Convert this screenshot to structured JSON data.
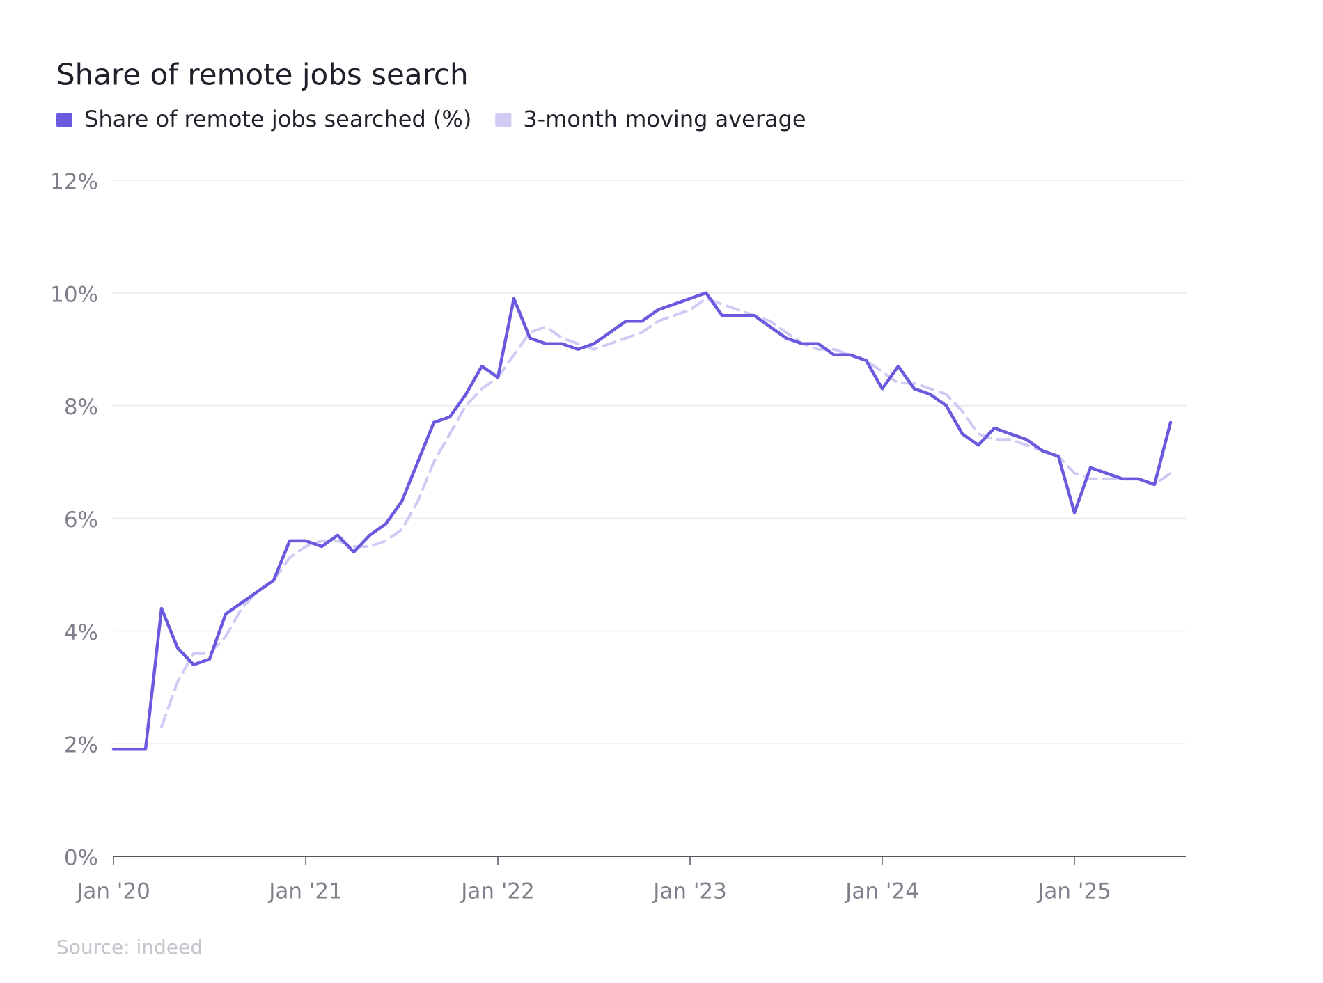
{
  "chart_data": {
    "type": "line",
    "title": "Share of remote jobs search",
    "source": "Source: indeed",
    "x": [
      "2020-01",
      "2020-02",
      "2020-03",
      "2020-04",
      "2020-05",
      "2020-06",
      "2020-07",
      "2020-08",
      "2020-09",
      "2020-10",
      "2020-11",
      "2020-12",
      "2021-01",
      "2021-02",
      "2021-03",
      "2021-04",
      "2021-05",
      "2021-06",
      "2021-07",
      "2021-08",
      "2021-09",
      "2021-10",
      "2021-11",
      "2021-12",
      "2022-01",
      "2022-02",
      "2022-03",
      "2022-04",
      "2022-05",
      "2022-06",
      "2022-07",
      "2022-08",
      "2022-09",
      "2022-10",
      "2022-11",
      "2022-12",
      "2023-01",
      "2023-02",
      "2023-03",
      "2023-04",
      "2023-05",
      "2023-06",
      "2023-07",
      "2023-08",
      "2023-09",
      "2023-10",
      "2023-11",
      "2023-12",
      "2024-01",
      "2024-02",
      "2024-03",
      "2024-04",
      "2024-05",
      "2024-06",
      "2024-07",
      "2024-08",
      "2024-09",
      "2024-10",
      "2024-11",
      "2024-12",
      "2025-01",
      "2025-02",
      "2025-03",
      "2025-04",
      "2025-05",
      "2025-06",
      "2025-07"
    ],
    "series": [
      {
        "name": "Share of remote jobs searched (%)",
        "color": "#6a5add",
        "values": [
          1.9,
          1.9,
          1.9,
          4.4,
          3.7,
          3.4,
          3.5,
          4.3,
          4.5,
          4.7,
          4.9,
          5.6,
          5.6,
          5.5,
          5.7,
          5.4,
          5.7,
          5.9,
          6.3,
          7.0,
          7.7,
          7.8,
          8.2,
          8.7,
          8.5,
          9.9,
          9.2,
          9.1,
          9.1,
          9.0,
          9.1,
          9.3,
          9.5,
          9.5,
          9.7,
          9.8,
          9.9,
          10.0,
          9.6,
          9.6,
          9.6,
          9.4,
          9.2,
          9.1,
          9.1,
          8.9,
          8.9,
          8.8,
          8.3,
          8.7,
          8.3,
          8.2,
          8.0,
          7.5,
          7.3,
          7.6,
          7.5,
          7.4,
          7.2,
          7.1,
          6.1,
          6.9,
          6.8,
          6.7,
          6.7,
          6.6,
          7.7
        ]
      },
      {
        "name": "3-month moving average",
        "color": "#cfcbf5",
        "dashed": true,
        "values": [
          null,
          null,
          null,
          2.3,
          3.1,
          3.6,
          3.6,
          3.9,
          4.4,
          4.7,
          4.9,
          5.3,
          5.5,
          5.6,
          5.6,
          5.5,
          5.5,
          5.6,
          5.8,
          6.3,
          7.0,
          7.5,
          8.0,
          8.3,
          8.5,
          8.9,
          9.3,
          9.4,
          9.2,
          9.1,
          9.0,
          9.1,
          9.2,
          9.3,
          9.5,
          9.6,
          9.7,
          9.9,
          9.8,
          9.7,
          9.6,
          9.5,
          9.3,
          9.1,
          9.0,
          9.0,
          8.9,
          8.8,
          8.6,
          8.4,
          8.4,
          8.3,
          8.2,
          7.9,
          7.5,
          7.4,
          7.4,
          7.3,
          7.2,
          7.1,
          6.8,
          6.7,
          6.7,
          6.7,
          6.7,
          6.6,
          6.8
        ]
      }
    ],
    "xticks": [
      {
        "value": "2020-01",
        "label": "Jan '20"
      },
      {
        "value": "2021-01",
        "label": "Jan '21"
      },
      {
        "value": "2022-01",
        "label": "Jan '22"
      },
      {
        "value": "2023-01",
        "label": "Jan '23"
      },
      {
        "value": "2024-01",
        "label": "Jan '24"
      },
      {
        "value": "2025-01",
        "label": "Jan '25"
      }
    ],
    "ylim": [
      0,
      12
    ],
    "yticks": [
      {
        "value": 0,
        "label": "0%"
      },
      {
        "value": 2,
        "label": "2%"
      },
      {
        "value": 4,
        "label": "4%"
      },
      {
        "value": 6,
        "label": "6%"
      },
      {
        "value": 8,
        "label": "8%"
      },
      {
        "value": 10,
        "label": "10%"
      },
      {
        "value": 12,
        "label": "12%"
      }
    ],
    "grid": true,
    "legend": "top-left"
  }
}
